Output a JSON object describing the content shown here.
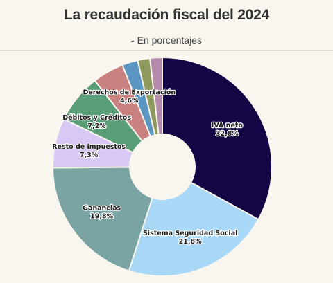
{
  "header": {
    "title": "La recaudación fiscal del 2024",
    "subtitle": "- En porcentajes"
  },
  "chart_data": {
    "type": "pie",
    "donut": true,
    "categories": [
      "IVA neto",
      "Sistema Seguridad Social",
      "Ganancias",
      "Resto de impuestos",
      "Débitos y Créditos",
      "Derechos de Exportación",
      "",
      "",
      ""
    ],
    "values": [
      32.8,
      21.8,
      19.8,
      7.3,
      7.2,
      4.6,
      2.3,
      1.8,
      1.8
    ],
    "value_labels": [
      "32,8%",
      "21,8%",
      "19,8%",
      "7,3%",
      "7,2%",
      "4,6%",
      "",
      "",
      ""
    ],
    "colors": [
      "#140545",
      "#a8d8f6",
      "#7aa3a3",
      "#d8c8f4",
      "#5a9e78",
      "#c9817f",
      "#5b97c2",
      "#8f9a5e",
      "#b48aad"
    ],
    "start_angle_deg": 0,
    "direction": "clockwise"
  }
}
